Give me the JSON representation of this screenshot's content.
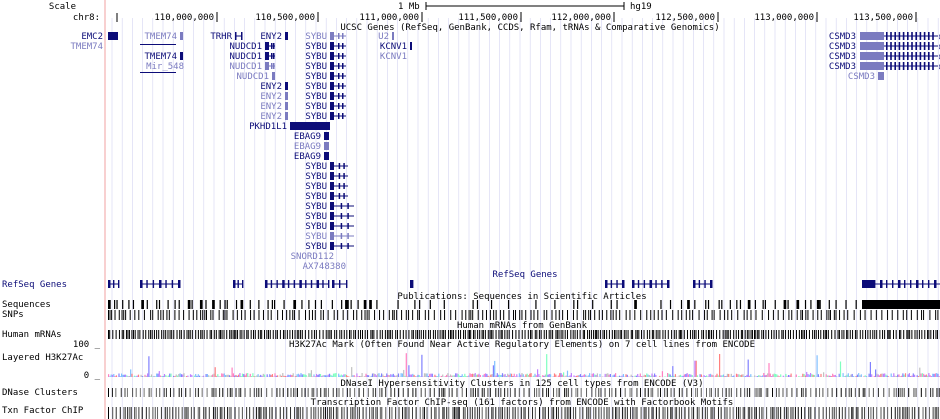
{
  "scale": {
    "label": "Scale",
    "bar_label": "1 Mb",
    "assembly": "hg19"
  },
  "ruler": {
    "chrom": "chr8:",
    "ticks": [
      "110,000,000",
      "110,500,000",
      "111,000,000",
      "111,500,000",
      "112,000,000",
      "112,500,000",
      "113,000,000",
      "113,500,000"
    ]
  },
  "tracks": {
    "ucsc_genes_title": "UCSC Genes (RefSeq, GenBank, CCDS, Rfam, tRNAs & Comparative Genomics)",
    "refseq_label": "RefSeq Genes",
    "refseq_title": "RefSeq Genes",
    "sequences_label": "Sequences",
    "sequences_title": "Publications: Sequences in Scientific Articles",
    "snps_label": "SNPs",
    "mrna_label": "Human mRNAs",
    "mrna_title": "Human mRNAs from GenBank",
    "h3k27_label": "Layered H3K27Ac",
    "h3k27_title": "H3K27Ac Mark (Often Found Near Active Regulatory Elements) on 7 cell lines from ENCODE",
    "h3k27_ymax": "100 _",
    "h3k27_ymin": "0 _",
    "dnase_label": "DNase Clusters",
    "dnase_title": "DNaseI Hypersensitivity Clusters in 125 cell types from ENCODE (V3)",
    "txn_label": "Txn Factor ChIP",
    "txn_title": "Transcription Factor ChIP-seq (161 factors) from ENCODE with Factorbook Motifs"
  },
  "genes": [
    {
      "name": "EMC2",
      "dark": true,
      "side": "r"
    },
    {
      "name": "TMEM74",
      "dark": false,
      "side": "r"
    },
    {
      "name": "TMEM74",
      "dark": false,
      "side": "r"
    },
    {
      "name": "TMEM74",
      "dark": true,
      "side": "r"
    },
    {
      "name": "Mir_548",
      "dark": false,
      "side": "r"
    },
    {
      "name": "TRHR",
      "dark": true,
      "side": "r"
    },
    {
      "name": "ENY2",
      "dark": true,
      "side": "r"
    },
    {
      "name": "NUDCD1",
      "dark": true,
      "side": "r"
    },
    {
      "name": "NUDCD1",
      "dark": true,
      "side": "r"
    },
    {
      "name": "NUDCD1",
      "dark": false,
      "side": "r"
    },
    {
      "name": "NUDCD1",
      "dark": false,
      "side": "r"
    },
    {
      "name": "ENY2",
      "dark": true,
      "side": "r"
    },
    {
      "name": "ENY2",
      "dark": false,
      "side": "r"
    },
    {
      "name": "ENY2",
      "dark": false,
      "side": "r"
    },
    {
      "name": "ENY2",
      "dark": false,
      "side": "r"
    },
    {
      "name": "PKHD1L1",
      "dark": true,
      "side": "r"
    },
    {
      "name": "SYBU",
      "dark": false,
      "side": "r"
    },
    {
      "name": "SYBU",
      "dark": true,
      "side": "r"
    },
    {
      "name": "SYBU",
      "dark": true,
      "side": "r"
    },
    {
      "name": "SYBU",
      "dark": true,
      "side": "r"
    },
    {
      "name": "SYBU",
      "dark": true,
      "side": "r"
    },
    {
      "name": "SYBU",
      "dark": true,
      "side": "r"
    },
    {
      "name": "SYBU",
      "dark": true,
      "side": "r"
    },
    {
      "name": "SYBU",
      "dark": true,
      "side": "r"
    },
    {
      "name": "SYBU",
      "dark": true,
      "side": "r"
    },
    {
      "name": "EBAG9",
      "dark": true,
      "side": "r"
    },
    {
      "name": "EBAG9",
      "dark": false,
      "side": "r"
    },
    {
      "name": "EBAG9",
      "dark": true,
      "side": "r"
    },
    {
      "name": "SYBU",
      "dark": true,
      "side": "r"
    },
    {
      "name": "SYBU",
      "dark": true,
      "side": "r"
    },
    {
      "name": "SYBU",
      "dark": true,
      "side": "r"
    },
    {
      "name": "SYBU",
      "dark": true,
      "side": "r"
    },
    {
      "name": "SYBU",
      "dark": true,
      "side": "r"
    },
    {
      "name": "SYBU",
      "dark": true,
      "side": "r"
    },
    {
      "name": "SYBU",
      "dark": true,
      "side": "r"
    },
    {
      "name": "SYBU",
      "dark": false,
      "side": "r"
    },
    {
      "name": "SYBU",
      "dark": true,
      "side": "r"
    },
    {
      "name": "SNORD112",
      "dark": false,
      "side": "r"
    },
    {
      "name": "AX748380",
      "dark": false,
      "side": "r"
    },
    {
      "name": "U2",
      "dark": false,
      "side": "r"
    },
    {
      "name": "KCNV1",
      "dark": true,
      "side": "r"
    },
    {
      "name": "KCNV1",
      "dark": false,
      "side": "r"
    },
    {
      "name": "CSMD3",
      "dark": true,
      "side": "r"
    },
    {
      "name": "CSMD3",
      "dark": true,
      "side": "r"
    },
    {
      "name": "CSMD3",
      "dark": true,
      "side": "r"
    },
    {
      "name": "CSMD3",
      "dark": true,
      "side": "r"
    },
    {
      "name": "CSMD3",
      "dark": false,
      "side": "r"
    }
  ],
  "colors": {
    "dark": "#0c0c78",
    "light": "#7b7bc0",
    "grid": "#d4d4f2",
    "red": "#e00000"
  }
}
